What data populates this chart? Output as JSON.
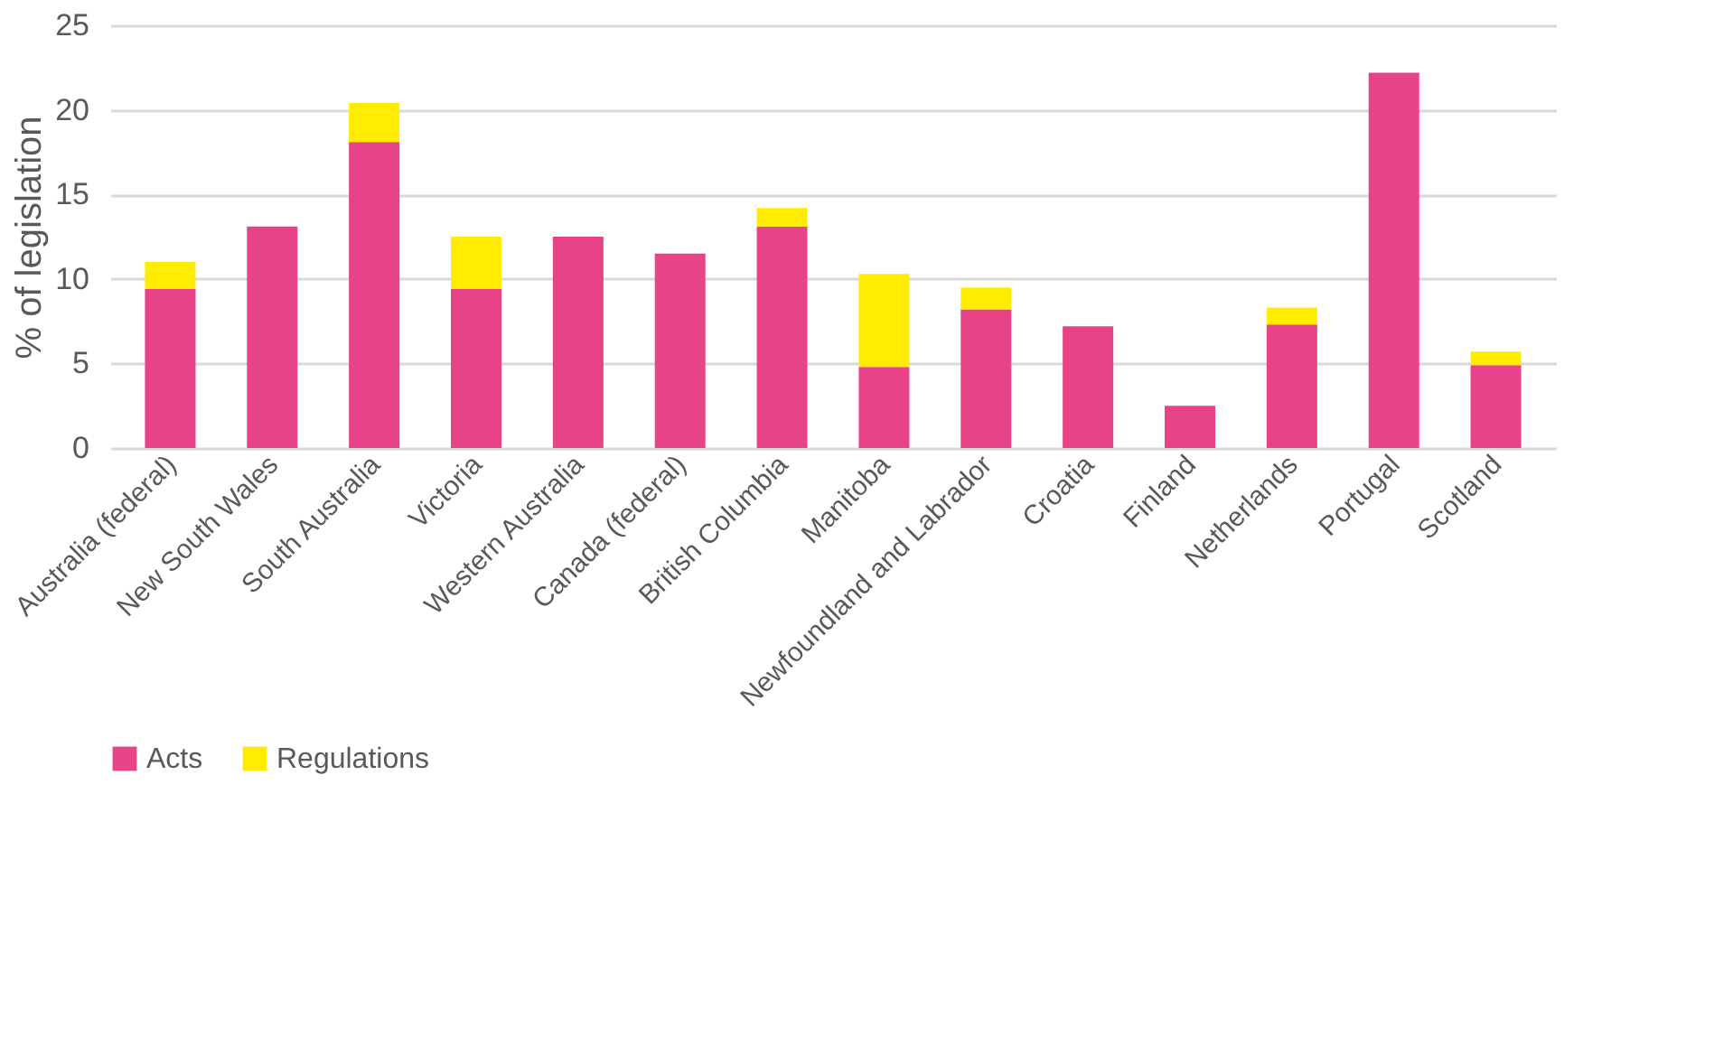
{
  "chart_data": {
    "type": "bar",
    "stacked": true,
    "ylabel": "% of legislation",
    "categories": [
      "Australia (federal)",
      "New South Wales",
      "South Australia",
      "Victoria",
      "Western Australia",
      "Canada (federal)",
      "British Columbia",
      "Manitoba",
      "Newfoundland and Labrador",
      "Croatia",
      "Finland",
      "Netherlands",
      "Portugal",
      "Scotland"
    ],
    "series": [
      {
        "name": "Acts",
        "color": "#e84388",
        "values": [
          9.4,
          13.1,
          18.1,
          9.4,
          12.5,
          11.5,
          13.1,
          4.8,
          8.2,
          7.2,
          2.5,
          7.3,
          22.2,
          4.9
        ]
      },
      {
        "name": "Regulations",
        "color": "#ffec00",
        "values": [
          1.6,
          0,
          2.3,
          3.1,
          0,
          0,
          1.1,
          5.5,
          1.3,
          0,
          0,
          1.0,
          0,
          0.8
        ]
      }
    ],
    "ylim": [
      0,
      25
    ],
    "yticks": [
      0,
      5,
      10,
      15,
      20,
      25
    ],
    "grid": "y",
    "legend": "bottom"
  }
}
